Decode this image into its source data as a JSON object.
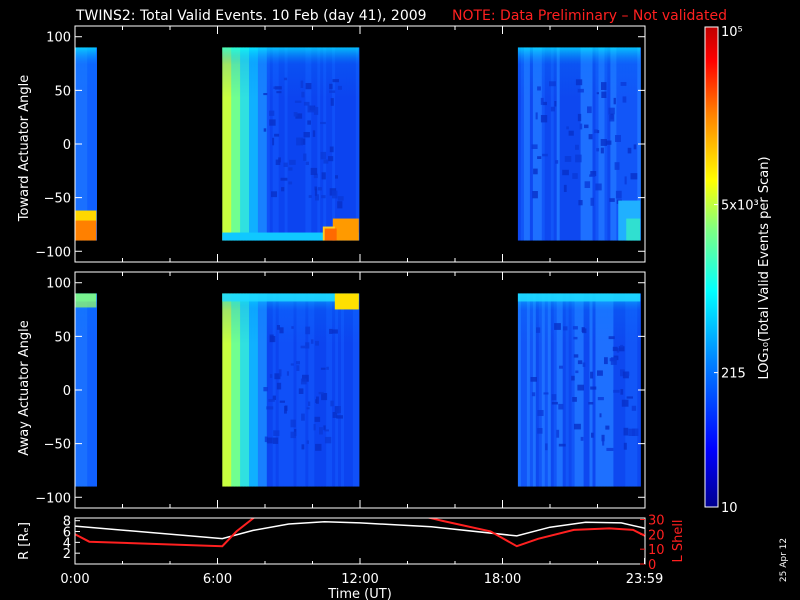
{
  "header": {
    "title": "TWINS2: Total Valid Events. 10 Feb (day  41), 2009",
    "note": "NOTE: Data Preliminary – Not validated",
    "note_color": "#ff2020"
  },
  "footer": {
    "date_stamp": "25 Apr 12"
  },
  "chart_data": [
    {
      "type": "heatmap",
      "panel": "toward",
      "ylabel": "Toward Actuator Angle",
      "ylim": [
        -110,
        110
      ],
      "y_ticks": [
        "100",
        "50",
        "0",
        "−50",
        "−100"
      ],
      "y_tick_values": [
        100,
        50,
        0,
        -50,
        -100
      ],
      "angle_range": [
        -90,
        90
      ],
      "x_range_hours": [
        0,
        24
      ],
      "data_intervals_hours": [
        [
          0.0,
          0.9
        ],
        [
          6.2,
          11.95
        ],
        [
          18.65,
          23.8
        ]
      ],
      "background": "#000000"
    },
    {
      "type": "heatmap",
      "panel": "away",
      "ylabel": "Away Actuator Angle",
      "ylim": [
        -110,
        110
      ],
      "y_ticks": [
        "100",
        "50",
        "0",
        "−50",
        "−100"
      ],
      "y_tick_values": [
        100,
        50,
        0,
        -50,
        -100
      ],
      "angle_range": [
        -90,
        90
      ],
      "x_range_hours": [
        0,
        24
      ],
      "data_intervals_hours": [
        [
          0.0,
          0.9
        ],
        [
          6.2,
          11.95
        ],
        [
          18.65,
          23.8
        ]
      ],
      "background": "#000000"
    },
    {
      "type": "line",
      "panel": "orbit",
      "ylabel_left": "R [Rₑ]",
      "ylabel_right": "L Shell",
      "y_left_ticks": [
        "8",
        "6",
        "4",
        "2"
      ],
      "y_left_values": [
        8,
        6,
        4,
        2
      ],
      "y_left_range": [
        0,
        8.5
      ],
      "y_right_ticks": [
        "30",
        "20",
        "10",
        "0"
      ],
      "y_right_values": [
        30,
        20,
        10,
        0
      ],
      "y_right_range": [
        0,
        31
      ],
      "xlabel": "Time (UT)",
      "x_ticks": [
        "0:00",
        "6:00",
        "12:00",
        "18:00",
        "23:59"
      ],
      "x_tick_hours": [
        0,
        6,
        12,
        18,
        23.98
      ],
      "series": [
        {
          "axis": "left",
          "color": "#ffffff",
          "x": [
            0,
            6.2,
            7.5,
            9,
            10.5,
            12,
            15,
            18.6,
            20,
            21.5,
            23,
            24
          ],
          "y": [
            7.0,
            4.7,
            6.2,
            7.4,
            7.8,
            7.6,
            6.9,
            5.2,
            6.8,
            7.7,
            7.6,
            6.6
          ]
        },
        {
          "axis": "right",
          "color": "#ff2020",
          "segments": [
            {
              "x": [
                0,
                0.6,
                6.2,
                6.8,
                7.6
              ],
              "y": [
                20,
                15,
                12,
                22,
                32
              ]
            },
            {
              "x": [
                14.7,
                15.5,
                17.5,
                18.6,
                19.5,
                21,
                22.5,
                23.5,
                24
              ],
              "y": [
                32,
                29,
                22,
                12,
                17,
                23,
                24,
                23,
                19
              ]
            }
          ]
        }
      ]
    },
    {
      "type": "colorbar",
      "label": "LOG₁₀(Total Valid Events per Scan)",
      "ticks": [
        "10⁵",
        "5x10³",
        "215",
        "10"
      ],
      "tick_positions": [
        1.0,
        0.63,
        0.28,
        0.0
      ],
      "colormap": [
        "#00008f",
        "#0000ff",
        "#0080ff",
        "#00ffff",
        "#80ff80",
        "#ffff00",
        "#ff8000",
        "#ff0000",
        "#bf0000"
      ]
    }
  ]
}
